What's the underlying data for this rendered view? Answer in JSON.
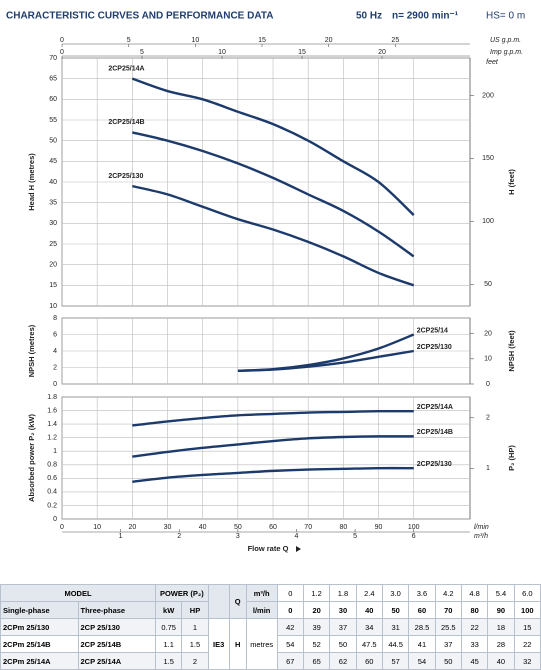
{
  "header": {
    "title": "CHARACTERISTIC CURVES AND PERFORMANCE DATA",
    "frequency": "50 Hz",
    "speed": "n= 2900 min⁻¹",
    "suction": "HS= 0 m"
  },
  "chart_data": [
    {
      "type": "line",
      "y_label": "Head H (metres)",
      "y2_label": "H (feet)",
      "y2_unit": "feet",
      "x": [
        20,
        30,
        40,
        50,
        60,
        70,
        80,
        90,
        100
      ],
      "series": [
        {
          "name": "2CP25/14A",
          "color": "#1c3a6b",
          "values": [
            65,
            62,
            60,
            57,
            54,
            50,
            45,
            40,
            32
          ]
        },
        {
          "name": "2CP25/14B",
          "color": "#1c3a6b",
          "values": [
            52,
            50,
            47.5,
            44.5,
            41,
            37,
            33,
            28,
            22
          ]
        },
        {
          "name": "2CP25/130",
          "color": "#1c3a6b",
          "values": [
            39,
            37,
            34,
            31,
            28.5,
            25.5,
            22,
            18,
            15
          ]
        }
      ],
      "xlim": [
        0,
        116
      ],
      "xticks": [
        0,
        10,
        20,
        30,
        40,
        50,
        60,
        70,
        80,
        90,
        100
      ],
      "ylim": [
        10,
        70
      ],
      "yticks": [
        10,
        15,
        20,
        25,
        30,
        35,
        40,
        45,
        50,
        55,
        60,
        65,
        70
      ],
      "y2lim": [
        32.8,
        229.7
      ],
      "y2ticks": [
        50,
        100,
        150,
        200
      ],
      "top_axes": [
        {
          "label": "US g.p.m.",
          "lim": [
            0,
            30.6
          ],
          "ticks": [
            0,
            5,
            10,
            15,
            20,
            25
          ]
        },
        {
          "label": "Imp g.p.m.",
          "lim": [
            0,
            25.5
          ],
          "ticks": [
            0,
            5,
            10,
            15,
            20
          ]
        }
      ],
      "grid": true
    },
    {
      "type": "line",
      "y_label": "NPSH (metres)",
      "y2_label": "NPSH (feet)",
      "x": [
        50,
        60,
        70,
        80,
        90,
        100
      ],
      "series": [
        {
          "name": "2CP25/14",
          "color": "#1c3a6b",
          "values": [
            1.6,
            1.8,
            2.3,
            3.1,
            4.3,
            6.0
          ]
        },
        {
          "name": "2CP25/130",
          "color": "#1c3a6b",
          "values": [
            1.6,
            1.75,
            2.1,
            2.6,
            3.3,
            4.0
          ]
        }
      ],
      "xlim": [
        0,
        116
      ],
      "xticks": [
        0,
        10,
        20,
        30,
        40,
        50,
        60,
        70,
        80,
        90,
        100
      ],
      "ylim": [
        0,
        8
      ],
      "yticks": [
        0,
        2,
        4,
        6,
        8
      ],
      "y2lim": [
        0,
        26.2
      ],
      "y2ticks": [
        0,
        10,
        20
      ],
      "grid": true
    },
    {
      "type": "line",
      "y_label": "Absorbed power P₂ (kW)",
      "y2_label": "P₂ (HP)",
      "x_label": "Flow rate Q",
      "x_unit": "l/min",
      "x": [
        20,
        30,
        40,
        50,
        60,
        70,
        80,
        90,
        100
      ],
      "series": [
        {
          "name": "2CP25/14A",
          "color": "#1c3a6b",
          "values": [
            1.38,
            1.44,
            1.49,
            1.53,
            1.55,
            1.57,
            1.58,
            1.59,
            1.59
          ]
        },
        {
          "name": "2CP25/14B",
          "color": "#1c3a6b",
          "values": [
            0.92,
            0.99,
            1.05,
            1.1,
            1.15,
            1.19,
            1.21,
            1.22,
            1.22
          ]
        },
        {
          "name": "2CP25/130",
          "color": "#1c3a6b",
          "values": [
            0.55,
            0.61,
            0.65,
            0.68,
            0.71,
            0.73,
            0.74,
            0.75,
            0.75
          ]
        }
      ],
      "xlim": [
        0,
        116
      ],
      "xticks": [
        0,
        10,
        20,
        30,
        40,
        50,
        60,
        70,
        80,
        90,
        100
      ],
      "ylim": [
        0,
        1.8
      ],
      "yticks": [
        0,
        0.2,
        0.4,
        0.6,
        0.8,
        1,
        1.2,
        1.4,
        1.6,
        1.8
      ],
      "y2lim": [
        0,
        2.41
      ],
      "y2ticks": [
        1,
        2
      ],
      "x2": {
        "label": "m³/h",
        "lim": [
          0,
          6.96
        ],
        "ticks": [
          1,
          2,
          3,
          4,
          5,
          6
        ]
      },
      "grid": true
    }
  ],
  "table": {
    "model": "MODEL",
    "single": "Single-phase",
    "three": "Three-phase",
    "power": "POWER (P₂)",
    "kw": "kW",
    "hp": "HP",
    "q": "Q",
    "q_unit_m3h": "m³/h",
    "q_unit_lmin": "l/min",
    "h": "H",
    "h_unit": "metres",
    "efficiency": "IE3",
    "q_m3h": [
      "0",
      "1.2",
      "1.8",
      "2.4",
      "3.0",
      "3.6",
      "4.2",
      "4.8",
      "5.4",
      "6.0"
    ],
    "q_lmin": [
      "0",
      "20",
      "30",
      "40",
      "50",
      "60",
      "70",
      "80",
      "90",
      "100"
    ],
    "rows": [
      {
        "single": "2CPm 25/130",
        "three": "2CP 25/130",
        "kw": "0.75",
        "hp": "1",
        "h": [
          "42",
          "39",
          "37",
          "34",
          "31",
          "28.5",
          "25.5",
          "22",
          "18",
          "15"
        ]
      },
      {
        "single": "2CPm 25/14B",
        "three": "2CP 25/14B",
        "kw": "1.1",
        "hp": "1.5",
        "h": [
          "54",
          "52",
          "50",
          "47.5",
          "44.5",
          "41",
          "37",
          "33",
          "28",
          "22"
        ]
      },
      {
        "single": "2CPm 25/14A",
        "three": "2CP 25/14A",
        "kw": "1.5",
        "hp": "2",
        "h": [
          "67",
          "65",
          "62",
          "60",
          "57",
          "54",
          "50",
          "45",
          "40",
          "32"
        ]
      }
    ]
  }
}
